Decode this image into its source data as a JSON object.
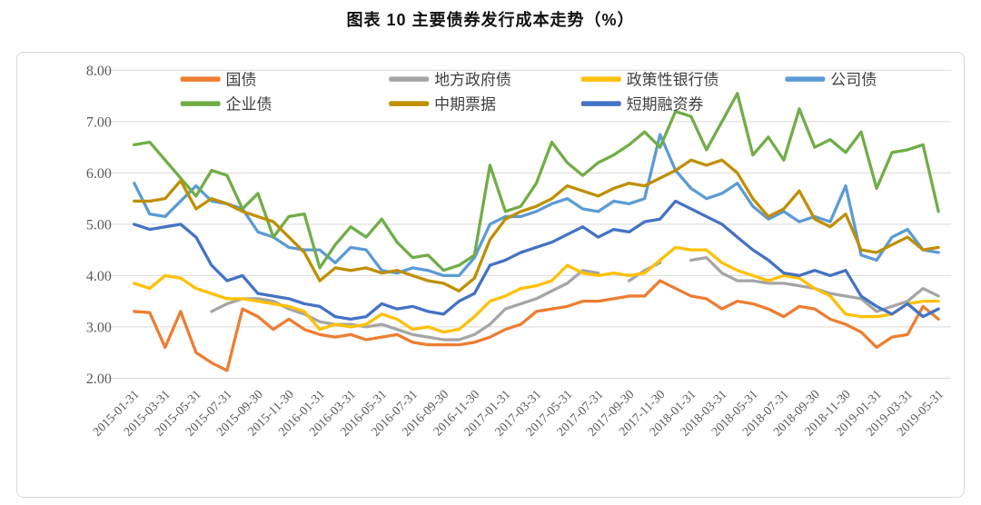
{
  "page": {
    "title": "图表 10 主要债券发行成本走势（%）"
  },
  "chart_data": {
    "type": "line",
    "title": "图表 10 主要债券发行成本走势（%）",
    "ylabel": "",
    "xlabel": "",
    "ylim": [
      2.0,
      8.0
    ],
    "yticks": [
      "2.00",
      "3.00",
      "4.00",
      "5.00",
      "6.00",
      "7.00",
      "8.00"
    ],
    "grid": "horizontal",
    "legend_position": "top",
    "x_tick_every": 2,
    "x": [
      "2015-01-31",
      "2015-02-28",
      "2015-03-31",
      "2015-04-30",
      "2015-05-31",
      "2015-06-30",
      "2015-07-31",
      "2015-08-31",
      "2015-09-30",
      "2015-10-31",
      "2015-11-30",
      "2015-12-31",
      "2016-01-31",
      "2016-02-29",
      "2016-03-31",
      "2016-04-30",
      "2016-05-31",
      "2016-06-30",
      "2016-07-31",
      "2016-08-31",
      "2016-09-30",
      "2016-10-31",
      "2016-11-30",
      "2016-12-31",
      "2017-01-31",
      "2017-02-28",
      "2017-03-31",
      "2017-04-30",
      "2017-05-31",
      "2017-06-30",
      "2017-07-31",
      "2017-08-31",
      "2017-09-30",
      "2017-10-31",
      "2017-11-30",
      "2017-12-31",
      "2018-01-31",
      "2018-02-28",
      "2018-03-31",
      "2018-04-30",
      "2018-05-31",
      "2018-06-30",
      "2018-07-31",
      "2018-08-31",
      "2018-09-30",
      "2018-10-31",
      "2018-11-30",
      "2018-12-31",
      "2019-01-31",
      "2019-02-28",
      "2019-03-31",
      "2019-04-30",
      "2019-05-31"
    ],
    "series": [
      {
        "name": "国债",
        "color": "#ED7D31",
        "values": [
          3.3,
          3.28,
          2.6,
          3.3,
          2.5,
          2.3,
          2.15,
          3.35,
          3.2,
          2.95,
          3.15,
          2.95,
          2.85,
          2.8,
          2.85,
          2.75,
          2.8,
          2.85,
          2.7,
          2.65,
          2.65,
          2.65,
          2.7,
          2.8,
          2.95,
          3.05,
          3.3,
          3.35,
          3.4,
          3.5,
          3.5,
          3.55,
          3.6,
          3.6,
          3.9,
          3.75,
          3.6,
          3.55,
          3.35,
          3.5,
          3.45,
          3.35,
          3.2,
          3.4,
          3.35,
          3.15,
          3.05,
          2.9,
          2.6,
          2.8,
          2.85,
          3.4,
          3.15
        ]
      },
      {
        "name": "地方政府债",
        "color": "#A5A5A5",
        "values": [
          null,
          null,
          null,
          null,
          null,
          3.3,
          3.45,
          3.55,
          3.55,
          3.5,
          3.35,
          3.25,
          3.1,
          3.05,
          3.05,
          3.0,
          3.05,
          2.95,
          2.85,
          2.8,
          2.75,
          2.75,
          2.85,
          3.05,
          3.35,
          3.45,
          3.55,
          3.7,
          3.85,
          4.1,
          4.05,
          null,
          3.9,
          4.1,
          4.25,
          null,
          4.3,
          4.35,
          4.05,
          3.9,
          3.9,
          3.85,
          3.85,
          3.8,
          3.75,
          3.65,
          3.6,
          3.55,
          3.3,
          3.4,
          3.5,
          3.75,
          3.6
        ]
      },
      {
        "name": "政策性银行债",
        "color": "#FFC000",
        "values": [
          3.85,
          3.75,
          4.0,
          3.95,
          3.75,
          3.65,
          3.55,
          3.55,
          3.5,
          3.45,
          3.4,
          3.3,
          2.95,
          3.05,
          3.0,
          3.05,
          3.25,
          3.15,
          2.95,
          3.0,
          2.9,
          2.95,
          3.2,
          3.5,
          3.6,
          3.75,
          3.8,
          3.9,
          4.2,
          4.05,
          4.0,
          4.05,
          4.0,
          4.05,
          4.3,
          4.55,
          4.5,
          4.5,
          4.25,
          4.1,
          4.0,
          3.9,
          4.0,
          3.95,
          3.75,
          3.6,
          3.25,
          3.2,
          3.2,
          3.25,
          3.45,
          3.5,
          3.5
        ]
      },
      {
        "name": "公司债",
        "color": "#5B9BD5",
        "values": [
          5.8,
          5.2,
          5.15,
          5.45,
          5.75,
          5.45,
          5.4,
          5.3,
          4.85,
          4.75,
          4.55,
          4.5,
          4.5,
          4.25,
          4.55,
          4.5,
          4.1,
          4.05,
          4.15,
          4.1,
          4.0,
          4.0,
          4.35,
          5.0,
          5.15,
          5.15,
          5.25,
          5.4,
          5.5,
          5.3,
          5.25,
          5.45,
          5.4,
          5.5,
          6.75,
          6.05,
          5.7,
          5.5,
          5.6,
          5.8,
          5.35,
          5.1,
          5.25,
          5.05,
          5.15,
          5.05,
          5.75,
          4.4,
          4.3,
          4.75,
          4.9,
          4.5,
          4.45
        ]
      },
      {
        "name": "企业债",
        "color": "#70AD47",
        "values": [
          6.55,
          6.6,
          6.25,
          5.9,
          5.55,
          6.05,
          5.95,
          5.3,
          5.6,
          4.75,
          5.15,
          5.2,
          4.15,
          4.6,
          4.95,
          4.75,
          5.1,
          4.65,
          4.35,
          4.4,
          4.1,
          4.2,
          4.4,
          6.15,
          5.25,
          5.35,
          5.8,
          6.6,
          6.2,
          5.95,
          6.2,
          6.35,
          6.55,
          6.8,
          6.5,
          7.2,
          7.1,
          6.45,
          7.0,
          7.55,
          6.35,
          6.7,
          6.25,
          7.25,
          6.5,
          6.65,
          6.4,
          6.8,
          5.7,
          6.4,
          6.45,
          6.55,
          5.25
        ]
      },
      {
        "name": "中期票据",
        "color": "#BF8F00",
        "values": [
          5.45,
          5.45,
          5.5,
          5.85,
          5.3,
          5.5,
          5.4,
          5.25,
          5.15,
          5.05,
          4.75,
          4.45,
          3.9,
          4.15,
          4.1,
          4.15,
          4.05,
          4.1,
          4.0,
          3.9,
          3.85,
          3.7,
          3.95,
          4.7,
          5.1,
          5.25,
          5.35,
          5.5,
          5.75,
          5.65,
          5.55,
          5.7,
          5.8,
          5.75,
          5.9,
          6.05,
          6.25,
          6.15,
          6.25,
          6.0,
          5.5,
          5.15,
          5.3,
          5.65,
          5.1,
          4.95,
          5.2,
          4.5,
          4.45,
          4.6,
          4.75,
          4.5,
          4.55
        ]
      },
      {
        "name": "短期融资券",
        "color": "#4472C4",
        "values": [
          5.0,
          4.9,
          4.95,
          5.0,
          4.75,
          4.2,
          3.9,
          4.0,
          3.65,
          3.6,
          3.55,
          3.45,
          3.4,
          3.2,
          3.15,
          3.2,
          3.45,
          3.35,
          3.4,
          3.3,
          3.25,
          3.5,
          3.65,
          4.2,
          4.3,
          4.45,
          4.55,
          4.65,
          4.8,
          4.95,
          4.75,
          4.9,
          4.85,
          5.05,
          5.1,
          5.45,
          5.3,
          5.15,
          5.0,
          4.75,
          4.5,
          4.3,
          4.05,
          4.0,
          4.1,
          4.0,
          4.1,
          3.6,
          3.4,
          3.25,
          3.45,
          3.2,
          3.35
        ]
      }
    ],
    "legend_rows": [
      [
        0,
        1,
        2,
        3
      ],
      [
        4,
        5,
        6
      ]
    ]
  }
}
